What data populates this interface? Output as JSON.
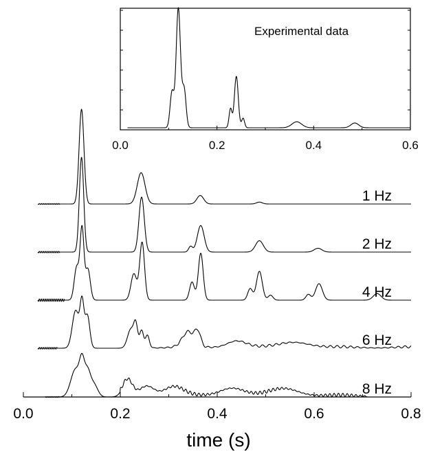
{
  "chart_data": [
    {
      "type": "line",
      "panel": "inset",
      "annotation": "Experimental data",
      "xlim": [
        0.0,
        0.6
      ],
      "x_ticks": [
        "0.0",
        "0.2",
        "0.4",
        "0.6"
      ],
      "y_ticks_labeled": false,
      "series": [
        {
          "peaks": [
            {
              "x": 0.107,
              "height": 0.3,
              "width": 0.004
            },
            {
              "x": 0.12,
              "height": 1.0,
              "width": 0.0045
            },
            {
              "x": 0.132,
              "height": 0.32,
              "width": 0.004
            },
            {
              "x": 0.228,
              "height": 0.16,
              "width": 0.003
            },
            {
              "x": 0.24,
              "height": 0.43,
              "width": 0.004
            },
            {
              "x": 0.254,
              "height": 0.08,
              "width": 0.003
            },
            {
              "x": 0.365,
              "height": 0.05,
              "width": 0.01
            },
            {
              "x": 0.485,
              "height": 0.04,
              "width": 0.008
            }
          ],
          "x_start": 0.015,
          "x_end": 0.6
        }
      ]
    },
    {
      "type": "line",
      "panel": "main",
      "xlabel": "time (s)",
      "xlim": [
        0.0,
        0.8
      ],
      "x_ticks": [
        "0.0",
        "0.2",
        "0.4",
        "0.6",
        "0.8"
      ],
      "series": [
        {
          "name": "1 Hz",
          "x_start": 0.03,
          "x_end": 0.8,
          "ripple": {
            "amp": 0.005,
            "period": 0.004,
            "until": 0.075
          },
          "peaks": [
            {
              "x": 0.12,
              "height": 1.0,
              "width": 0.005
            },
            {
              "x": 0.243,
              "height": 0.33,
              "width": 0.008
            },
            {
              "x": 0.365,
              "height": 0.09,
              "width": 0.007
            },
            {
              "x": 0.487,
              "height": 0.02,
              "width": 0.006
            }
          ]
        },
        {
          "name": "2 Hz",
          "x_start": 0.03,
          "x_end": 0.8,
          "ripple": {
            "amp": 0.008,
            "period": 0.004,
            "until": 0.075
          },
          "peaks": [
            {
              "x": 0.12,
              "height": 1.0,
              "width": 0.0045
            },
            {
              "x": 0.244,
              "height": 0.58,
              "width": 0.0055
            },
            {
              "x": 0.345,
              "height": 0.06,
              "width": 0.004
            },
            {
              "x": 0.366,
              "height": 0.28,
              "width": 0.007
            },
            {
              "x": 0.487,
              "height": 0.12,
              "width": 0.008
            },
            {
              "x": 0.608,
              "height": 0.04,
              "width": 0.008
            }
          ]
        },
        {
          "name": "4 Hz",
          "x_start": 0.03,
          "x_end": 0.8,
          "ripple": {
            "amp": 0.015,
            "period": 0.004,
            "until": 0.085
          },
          "peaks": [
            {
              "x": 0.11,
              "height": 0.4,
              "width": 0.005
            },
            {
              "x": 0.121,
              "height": 0.85,
              "width": 0.004
            },
            {
              "x": 0.133,
              "height": 0.38,
              "width": 0.005
            },
            {
              "x": 0.228,
              "height": 0.32,
              "width": 0.006
            },
            {
              "x": 0.245,
              "height": 0.7,
              "width": 0.005
            },
            {
              "x": 0.348,
              "height": 0.22,
              "width": 0.005
            },
            {
              "x": 0.366,
              "height": 0.57,
              "width": 0.005
            },
            {
              "x": 0.468,
              "height": 0.14,
              "width": 0.005
            },
            {
              "x": 0.487,
              "height": 0.35,
              "width": 0.006
            },
            {
              "x": 0.51,
              "height": 0.06,
              "width": 0.005
            },
            {
              "x": 0.588,
              "height": 0.07,
              "width": 0.005
            },
            {
              "x": 0.61,
              "height": 0.2,
              "width": 0.007
            },
            {
              "x": 0.73,
              "height": 0.08,
              "width": 0.008
            }
          ]
        },
        {
          "name": "6 Hz",
          "x_start": 0.03,
          "x_end": 0.8,
          "ripple": {
            "amp": 0.012,
            "period": 0.004,
            "until": 0.07
          },
          "noise": {
            "start": 0.25,
            "end": 0.8,
            "amp": 0.04,
            "period": 0.014
          },
          "peaks": [
            {
              "x": 0.108,
              "height": 0.55,
              "width": 0.007
            },
            {
              "x": 0.121,
              "height": 0.62,
              "width": 0.004
            },
            {
              "x": 0.132,
              "height": 0.48,
              "width": 0.005
            },
            {
              "x": 0.222,
              "height": 0.28,
              "width": 0.007
            },
            {
              "x": 0.232,
              "height": 0.3,
              "width": 0.004
            },
            {
              "x": 0.244,
              "height": 0.26,
              "width": 0.004
            },
            {
              "x": 0.256,
              "height": 0.18,
              "width": 0.004
            },
            {
              "x": 0.34,
              "height": 0.22,
              "width": 0.012
            },
            {
              "x": 0.36,
              "height": 0.2,
              "width": 0.006
            },
            {
              "x": 0.44,
              "height": 0.1,
              "width": 0.02
            },
            {
              "x": 0.56,
              "height": 0.08,
              "width": 0.03
            }
          ]
        },
        {
          "name": "8 Hz",
          "x_start": 0.045,
          "x_end": 0.71,
          "ripple": {
            "amp": 0.01,
            "period": 0.004,
            "until": 0.075
          },
          "noise": {
            "start": 0.2,
            "end": 0.71,
            "amp": 0.08,
            "period": 0.009
          },
          "peaks": [
            {
              "x": 0.108,
              "height": 0.6,
              "width": 0.01
            },
            {
              "x": 0.121,
              "height": 0.58,
              "width": 0.005
            },
            {
              "x": 0.132,
              "height": 0.5,
              "width": 0.006
            },
            {
              "x": 0.145,
              "height": 0.28,
              "width": 0.008
            },
            {
              "x": 0.215,
              "height": 0.35,
              "width": 0.01
            },
            {
              "x": 0.255,
              "height": 0.22,
              "width": 0.015
            },
            {
              "x": 0.31,
              "height": 0.2,
              "width": 0.02
            },
            {
              "x": 0.43,
              "height": 0.18,
              "width": 0.025
            },
            {
              "x": 0.54,
              "height": 0.16,
              "width": 0.03
            }
          ]
        }
      ]
    }
  ]
}
